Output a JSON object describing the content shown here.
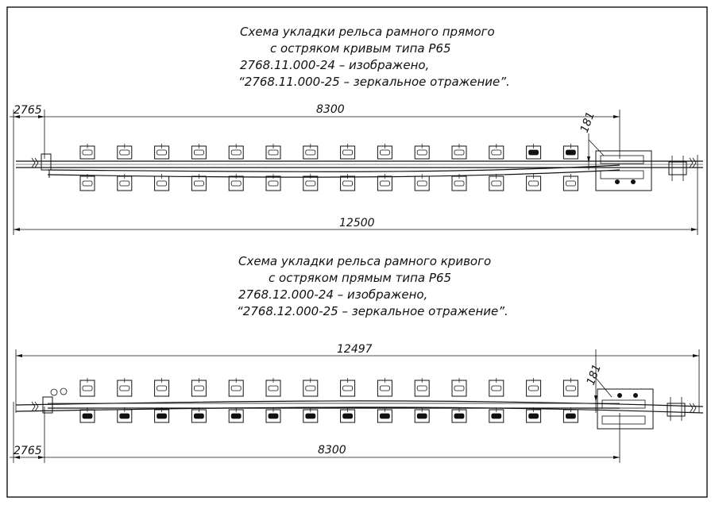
{
  "scheme_1": {
    "title_lines": [
      "Схема укладки рельса рамного прямого",
      "с остряком кривым типа Р65",
      "2768.11.000-24      – изображено,",
      "“2768.11.000-25 – зеркальное отражение”."
    ],
    "dimensions": {
      "offset": "2765",
      "span": "8300",
      "total": "12500",
      "gap": "181"
    }
  },
  "scheme_2": {
    "title_lines": [
      "Схема укладки рельса рамного кривого",
      "с остряком прямым типа Р65",
      "2768.12.000-24   – изображено,",
      "“2768.12.000-25 – зеркальное отражение”."
    ],
    "dimensions": {
      "total": "12497",
      "gap": "181",
      "offset": "2765",
      "span": "8300"
    }
  }
}
